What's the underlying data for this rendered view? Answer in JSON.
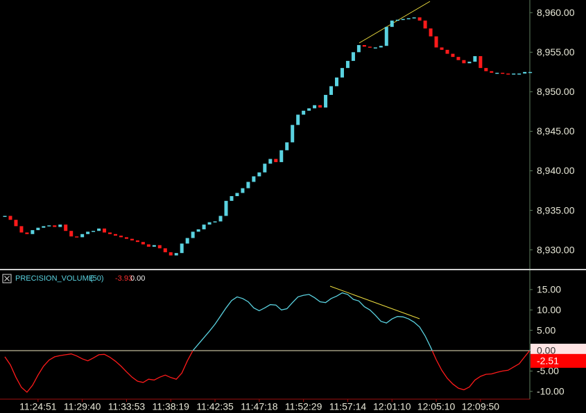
{
  "chart_data": [
    {
      "type": "candlestick",
      "up_color": "#5ad2e0",
      "down_color": "#ff1a1a",
      "values": [
        8934.3,
        8933.8,
        8933.0,
        8932.2,
        8932.0,
        8932.5,
        8932.8,
        8933.0,
        8933.1,
        8932.9,
        8933.2,
        8932.4,
        8931.7,
        8931.6,
        8932.0,
        8932.3,
        8932.4,
        8932.7,
        8932.2,
        8932.0,
        8931.8,
        8931.6,
        8931.4,
        8931.2,
        8931.0,
        8930.7,
        8930.4,
        8930.6,
        8930.2,
        8929.7,
        8929.3,
        8929.6,
        8930.8,
        8931.5,
        8932.3,
        8932.6,
        8933.2,
        8933.5,
        8933.6,
        8934.3,
        8936.2,
        8936.8,
        8937.2,
        8937.8,
        8938.6,
        8939.3,
        8939.8,
        8940.9,
        8941.5,
        8941.1,
        8942.6,
        8943.6,
        8945.8,
        8947.1,
        8947.6,
        8947.9,
        8948.3,
        8948.0,
        8949.6,
        8950.7,
        8951.8,
        8953.0,
        8953.9,
        8955.0,
        8955.9,
        8955.7,
        8955.6,
        8955.6,
        8955.8,
        8958.2,
        8959.0,
        8959.1,
        8959.2,
        8959.3,
        8959.4,
        8959.0,
        8958.0,
        8957.0,
        8955.6,
        8955.3,
        8954.8,
        8954.4,
        8954.0,
        8953.6,
        8953.8,
        8954.5,
        8953.0,
        8952.6,
        8952.4,
        8952.4,
        8952.3,
        8952.2,
        8952.3,
        8952.3,
        8952.5,
        8952.5
      ],
      "ylim": [
        8927.6,
        8961.6
      ],
      "yticks": [
        {
          "value": 8930,
          "label": "8,930.00"
        },
        {
          "value": 8935,
          "label": "8,935.00"
        },
        {
          "value": 8940,
          "label": "8,940.00"
        },
        {
          "value": 8945,
          "label": "8,945.00"
        },
        {
          "value": 8950,
          "label": "8,950.00"
        },
        {
          "value": 8955,
          "label": "8,955.00"
        },
        {
          "value": 8960,
          "label": "8,960.00"
        }
      ]
    },
    {
      "type": "line",
      "name": "PRECISION_VOLUME",
      "period": "(50)",
      "value1": -3.93,
      "value2": "0.00",
      "up_color": "#5ad2e0",
      "down_color": "#ff1a1a",
      "values": [
        -1.5,
        -3.5,
        -6.5,
        -9.0,
        -10.2,
        -8.5,
        -6.0,
        -3.8,
        -2.3,
        -1.5,
        -1.2,
        -1.0,
        -0.8,
        -1.3,
        -2.0,
        -2.5,
        -1.8,
        -1.0,
        -0.9,
        -1.6,
        -2.6,
        -3.8,
        -5.2,
        -6.5,
        -7.5,
        -7.8,
        -7.0,
        -7.2,
        -6.5,
        -6.0,
        -6.6,
        -7.0,
        -5.5,
        -2.5,
        0.0,
        1.6,
        3.2,
        4.8,
        6.5,
        8.5,
        10.5,
        12.3,
        13.2,
        12.8,
        12.0,
        10.5,
        9.8,
        10.5,
        11.3,
        11.2,
        10.0,
        10.3,
        11.8,
        13.2,
        13.6,
        13.8,
        13.0,
        12.0,
        11.8,
        12.8,
        13.4,
        14.2,
        13.8,
        12.6,
        12.2,
        10.8,
        10.0,
        8.7,
        7.2,
        6.8,
        7.8,
        8.4,
        8.3,
        7.8,
        7.0,
        5.8,
        3.6,
        0.8,
        -2.2,
        -4.8,
        -6.8,
        -8.2,
        -9.2,
        -9.6,
        -8.9,
        -7.2,
        -6.3,
        -5.8,
        -5.7,
        -5.3,
        -5.0,
        -4.8,
        -4.0,
        -3.2,
        -1.5,
        0.2
      ],
      "ylim": [
        -11.9,
        19.4
      ],
      "yticks": [
        {
          "value": -10,
          "label": "-10.00"
        },
        {
          "value": -5,
          "label": "-5.00"
        },
        {
          "value": 5,
          "label": "5.00"
        },
        {
          "value": 10,
          "label": "10.00"
        },
        {
          "value": 15,
          "label": "15.00"
        }
      ],
      "markers": [
        {
          "value": 0,
          "label": "0.00",
          "color": "#ffe4e4"
        },
        {
          "value": -2.51,
          "label": "-2.51",
          "color": "#ff0000"
        }
      ],
      "xticks": [
        {
          "value": 6,
          "label": "11:24:51"
        },
        {
          "value": 14,
          "label": "11:29:40"
        },
        {
          "value": 22,
          "label": "11:33:53"
        },
        {
          "value": 30,
          "label": "11:38:19"
        },
        {
          "value": 38,
          "label": "11:42:35"
        },
        {
          "value": 46,
          "label": "11:47:18"
        },
        {
          "value": 54,
          "label": "11:52:29"
        },
        {
          "value": 62,
          "label": "11:57:14"
        },
        {
          "value": 70,
          "label": "12:01:10"
        },
        {
          "value": 78,
          "label": "12:05:10"
        },
        {
          "value": 86,
          "label": "12:09:50"
        }
      ]
    }
  ]
}
